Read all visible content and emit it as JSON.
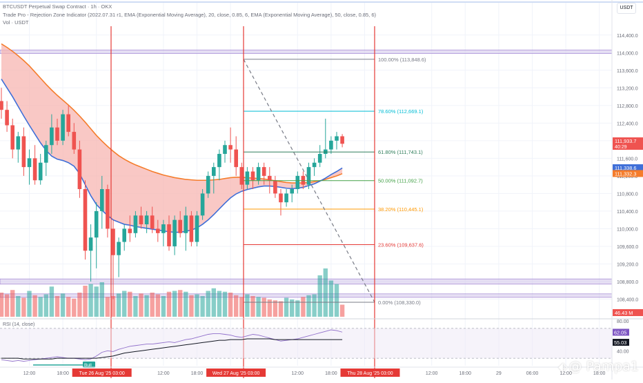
{
  "header": {
    "line1": "BTCUSDT Perpetual Swap Contract · 1h · OKX",
    "line2": "Trade Pro - Rejection Zone Indicator (2022.07.31 r1, EMA (Exponential Moving Average), 20, close, 0.85, 6, EMA (Exponential Moving Average), 50, close, 0.85, 6)",
    "line3": "Vol · USDT"
  },
  "currency": "USDT",
  "watermark": {
    "text": "@ Pampa1",
    "icon": "tradingview-logo-icon"
  },
  "colors": {
    "up": "#26a69a",
    "down": "#ef5350",
    "band": "#f7b6b2",
    "ema_fast": "#3f6fd8",
    "ema_slow": "#f57c2b",
    "vline": "#e53935",
    "rsi": "#7e57c2"
  },
  "chart_data": [
    {
      "type": "candlestick",
      "title": "",
      "ylim": [
        108000,
        114600
      ],
      "y_ticks": [
        "114,400.0",
        "114,000.0",
        "113,600.0",
        "113,200.0",
        "112,800.0",
        "112,400.0",
        "112,000.0",
        "111,600.0",
        "111,200.0",
        "110,800.0",
        "110,400.0",
        "110,000.0",
        "109,600.0",
        "109,200.0",
        "108,800.0",
        "108,400.0"
      ],
      "y_tick_values": [
        114400,
        114000,
        113600,
        113200,
        112800,
        112400,
        112000,
        111600,
        111200,
        110800,
        110400,
        110000,
        109600,
        109200,
        108800,
        108400
      ],
      "x_ticks": [
        {
          "i": 5,
          "label": "12:00"
        },
        {
          "i": 11,
          "label": "18:00"
        },
        {
          "i": 17,
          "label": "Tue 26 Aug '25   03:00",
          "highlight": true
        },
        {
          "i": 29,
          "label": "12:00"
        },
        {
          "i": 35,
          "label": "18:00"
        },
        {
          "i": 41,
          "label": "Wed 27 Aug '25   03:00",
          "highlight": true
        },
        {
          "i": 53,
          "label": "12:00"
        },
        {
          "i": 59,
          "label": "18:00"
        },
        {
          "i": 65,
          "label": "Thu 28 Aug '25   03:00",
          "highlight": true
        },
        {
          "i": 77,
          "label": "12:00"
        },
        {
          "i": 83,
          "label": "18:00"
        },
        {
          "i": 89,
          "label": "29"
        },
        {
          "i": 95,
          "label": "06:00"
        },
        {
          "i": 101,
          "label": "12:00"
        },
        {
          "i": 107,
          "label": "18:00"
        }
      ],
      "candles": [
        {
          "o": 112900,
          "h": 113200,
          "l": 112500,
          "c": 112700
        },
        {
          "o": 112700,
          "h": 112900,
          "l": 112200,
          "c": 112350
        },
        {
          "o": 112350,
          "h": 112500,
          "l": 111600,
          "c": 111800
        },
        {
          "o": 111800,
          "h": 112200,
          "l": 111500,
          "c": 112100
        },
        {
          "o": 112100,
          "h": 112300,
          "l": 111200,
          "c": 111400
        },
        {
          "o": 111400,
          "h": 111800,
          "l": 111000,
          "c": 111600
        },
        {
          "o": 111600,
          "h": 111900,
          "l": 111000,
          "c": 111100
        },
        {
          "o": 111100,
          "h": 111700,
          "l": 111000,
          "c": 111500
        },
        {
          "o": 111500,
          "h": 112000,
          "l": 111200,
          "c": 111900
        },
        {
          "o": 111900,
          "h": 112600,
          "l": 111700,
          "c": 112300
        },
        {
          "o": 112300,
          "h": 112500,
          "l": 111900,
          "c": 112000
        },
        {
          "o": 112000,
          "h": 112700,
          "l": 111900,
          "c": 112600
        },
        {
          "o": 112600,
          "h": 112800,
          "l": 112100,
          "c": 112200
        },
        {
          "o": 112200,
          "h": 112400,
          "l": 111700,
          "c": 111800
        },
        {
          "o": 111800,
          "h": 112000,
          "l": 110700,
          "c": 110900
        },
        {
          "o": 110900,
          "h": 111100,
          "l": 109300,
          "c": 109500
        },
        {
          "o": 109500,
          "h": 110100,
          "l": 108800,
          "c": 109800
        },
        {
          "o": 109800,
          "h": 110600,
          "l": 109100,
          "c": 110400
        },
        {
          "o": 110400,
          "h": 111200,
          "l": 110000,
          "c": 110900
        },
        {
          "o": 110900,
          "h": 111000,
          "l": 109800,
          "c": 110000
        },
        {
          "o": 110000,
          "h": 110200,
          "l": 108400,
          "c": 109400
        },
        {
          "o": 109400,
          "h": 109800,
          "l": 108900,
          "c": 109700
        },
        {
          "o": 109700,
          "h": 110100,
          "l": 109500,
          "c": 110000
        },
        {
          "o": 110000,
          "h": 110300,
          "l": 109700,
          "c": 109900
        },
        {
          "o": 109900,
          "h": 110400,
          "l": 109800,
          "c": 110300
        },
        {
          "o": 110300,
          "h": 110500,
          "l": 110000,
          "c": 110100
        },
        {
          "o": 110100,
          "h": 110400,
          "l": 109900,
          "c": 110300
        },
        {
          "o": 110300,
          "h": 110500,
          "l": 109900,
          "c": 110000
        },
        {
          "o": 110000,
          "h": 110200,
          "l": 109700,
          "c": 109900
        },
        {
          "o": 109900,
          "h": 110200,
          "l": 109600,
          "c": 110100
        },
        {
          "o": 110100,
          "h": 110300,
          "l": 109500,
          "c": 109600
        },
        {
          "o": 109600,
          "h": 110300,
          "l": 109400,
          "c": 110200
        },
        {
          "o": 110200,
          "h": 110400,
          "l": 109800,
          "c": 109900
        },
        {
          "o": 109900,
          "h": 110500,
          "l": 109500,
          "c": 110300
        },
        {
          "o": 110300,
          "h": 110400,
          "l": 109600,
          "c": 109700
        },
        {
          "o": 109700,
          "h": 110400,
          "l": 109600,
          "c": 110300
        },
        {
          "o": 110300,
          "h": 110900,
          "l": 110200,
          "c": 110800
        },
        {
          "o": 110800,
          "h": 111300,
          "l": 110700,
          "c": 111200
        },
        {
          "o": 111200,
          "h": 111500,
          "l": 110800,
          "c": 111400
        },
        {
          "o": 111400,
          "h": 111800,
          "l": 111100,
          "c": 111700
        },
        {
          "o": 111700,
          "h": 112000,
          "l": 111500,
          "c": 111900
        },
        {
          "o": 111900,
          "h": 112300,
          "l": 111500,
          "c": 111800
        },
        {
          "o": 111800,
          "h": 112100,
          "l": 111200,
          "c": 111400
        },
        {
          "o": 111400,
          "h": 111500,
          "l": 110900,
          "c": 111000
        },
        {
          "o": 111000,
          "h": 111400,
          "l": 110900,
          "c": 111300
        },
        {
          "o": 111300,
          "h": 111400,
          "l": 110900,
          "c": 111100
        },
        {
          "o": 111100,
          "h": 111500,
          "l": 111000,
          "c": 111400
        },
        {
          "o": 111400,
          "h": 111500,
          "l": 111000,
          "c": 111200
        },
        {
          "o": 111200,
          "h": 111400,
          "l": 110800,
          "c": 111100
        },
        {
          "o": 111100,
          "h": 111200,
          "l": 110700,
          "c": 110800
        },
        {
          "o": 110800,
          "h": 110900,
          "l": 110300,
          "c": 110600
        },
        {
          "o": 110600,
          "h": 110900,
          "l": 110500,
          "c": 110800
        },
        {
          "o": 110800,
          "h": 111000,
          "l": 110600,
          "c": 110900
        },
        {
          "o": 110900,
          "h": 111300,
          "l": 110800,
          "c": 111200
        },
        {
          "o": 111200,
          "h": 111300,
          "l": 110900,
          "c": 111000
        },
        {
          "o": 111000,
          "h": 111500,
          "l": 110900,
          "c": 111400
        },
        {
          "o": 111400,
          "h": 111600,
          "l": 111200,
          "c": 111500
        },
        {
          "o": 111500,
          "h": 111900,
          "l": 111400,
          "c": 111700
        },
        {
          "o": 111700,
          "h": 112500,
          "l": 111600,
          "c": 111800
        },
        {
          "o": 111800,
          "h": 112100,
          "l": 111700,
          "c": 112000
        },
        {
          "o": 112000,
          "h": 112200,
          "l": 111800,
          "c": 112100
        },
        {
          "o": 112100,
          "h": 112150,
          "l": 111850,
          "c": 111930
        }
      ],
      "volume": [
        140,
        130,
        155,
        120,
        110,
        150,
        125,
        115,
        130,
        175,
        120,
        135,
        115,
        105,
        140,
        180,
        190,
        175,
        200,
        115,
        120,
        135,
        150,
        145,
        120,
        135,
        125,
        140,
        130,
        120,
        145,
        150,
        155,
        145,
        125,
        130,
        120,
        150,
        165,
        150,
        145,
        140,
        125,
        115,
        130,
        120,
        115,
        110,
        100,
        95,
        90,
        110,
        100,
        95,
        115,
        125,
        130,
        240,
        280,
        210,
        190,
        70
      ],
      "fast_ema": [
        113400,
        113200,
        113000,
        112780,
        112560,
        112350,
        112150,
        111950,
        111780,
        111650,
        111580,
        111550,
        111500,
        111420,
        111250,
        111000,
        110750,
        110550,
        110420,
        110300,
        110200,
        110150,
        110100,
        110080,
        110050,
        110030,
        110010,
        109990,
        109970,
        109950,
        109930,
        109920,
        109920,
        109940,
        109970,
        110020,
        110100,
        110200,
        110320,
        110450,
        110580,
        110700,
        110790,
        110850,
        110890,
        110920,
        110950,
        110970,
        110970,
        110960,
        110940,
        110920,
        110910,
        110920,
        110940,
        110980,
        111020,
        111080,
        111150,
        111230,
        111300,
        111380
      ],
      "slow_ema": [
        114200,
        114120,
        114030,
        113930,
        113820,
        113700,
        113560,
        113420,
        113280,
        113150,
        113030,
        112920,
        112810,
        112690,
        112560,
        112420,
        112270,
        112120,
        111990,
        111870,
        111760,
        111660,
        111580,
        111510,
        111450,
        111400,
        111350,
        111300,
        111260,
        111220,
        111190,
        111160,
        111140,
        111120,
        111110,
        111100,
        111100,
        111100,
        111110,
        111120,
        111140,
        111160,
        111170,
        111170,
        111160,
        111150,
        111140,
        111130,
        111110,
        111090,
        111070,
        111050,
        111040,
        111040,
        111040,
        111050,
        111070,
        111090,
        111120,
        111160,
        111200,
        111250
      ],
      "fib_levels": [
        {
          "ratio": "100.00%",
          "price": 113848.6,
          "label": "100.00% (113,848.6)",
          "color": "#787b86"
        },
        {
          "ratio": "78.60%",
          "price": 112669.1,
          "label": "78.60% (112,669.1)",
          "color": "#00bcd4"
        },
        {
          "ratio": "61.80%",
          "price": 111743.1,
          "label": "61.80% (111,743.1)",
          "color": "#2e7d5b"
        },
        {
          "ratio": "50.00%",
          "price": 111092.7,
          "label": "50.00% (111,092.7)",
          "color": "#43a047"
        },
        {
          "ratio": "38.20%",
          "price": 110445.1,
          "label": "38.20% (110,445.1)",
          "color": "#ff9800"
        },
        {
          "ratio": "23.60%",
          "price": 109637.6,
          "label": "23.60% (109,637.6)",
          "color": "#e53935"
        },
        {
          "ratio": "0.00%",
          "price": 108330.0,
          "label": "0.00% (108,330.0)",
          "color": "#787b86"
        }
      ],
      "zones": [
        [
          113980,
          114060
        ],
        [
          108740,
          108860
        ],
        [
          108440,
          108520
        ]
      ],
      "price_labels": [
        {
          "value": 111933.7,
          "text": "111,933.7",
          "sub": "40:29",
          "color": "#ef5350"
        },
        {
          "value": 111338.6,
          "text": "111,338.6",
          "color": "#3f6fd8"
        },
        {
          "value": 111332.3,
          "text": "111,332.3",
          "color": "#f57c2b"
        }
      ],
      "volume_label": {
        "text": "46.43 M",
        "color": "#ef5350"
      }
    },
    {
      "type": "line",
      "title": "RSI (14, close)",
      "ylim": [
        20,
        80
      ],
      "y_ticks": [
        "80.00",
        "40.00"
      ],
      "y_tick_values": [
        80,
        40
      ],
      "bands": [
        70,
        30
      ],
      "rsi": [
        28,
        27,
        26,
        27,
        26,
        27,
        28,
        29,
        30,
        31,
        32,
        31,
        30,
        30,
        29,
        28,
        29,
        33,
        38,
        40,
        39,
        42,
        44,
        46,
        47,
        48,
        49,
        49,
        50,
        51,
        52,
        51,
        53,
        55,
        56,
        58,
        60,
        62,
        63,
        63,
        62,
        61,
        59,
        58,
        60,
        62,
        61,
        59,
        57,
        55,
        53,
        54,
        55,
        56,
        58,
        60,
        62,
        64,
        66,
        68,
        67,
        65
      ],
      "rsi_ma": [
        30,
        30,
        30,
        30,
        29,
        29,
        29,
        29,
        29,
        29,
        30,
        30,
        30,
        30,
        30,
        30,
        30,
        30,
        31,
        32,
        33,
        35,
        37,
        38,
        39,
        40,
        41,
        42,
        43,
        44,
        45,
        46,
        47,
        48,
        49,
        50,
        51,
        52,
        53,
        54,
        54,
        55,
        55,
        55,
        56,
        56,
        56,
        56,
        56,
        55,
        55,
        55,
        55,
        55,
        55,
        55,
        55,
        55,
        55,
        55,
        55,
        55
      ],
      "value_labels": [
        {
          "value": 62.05,
          "text": "62.05",
          "color": "#7e57c2"
        },
        {
          "value": 55.03,
          "text": "55.03",
          "color": "#131722"
        }
      ],
      "annotation": {
        "text": "Bull",
        "color": "#26a69a"
      }
    }
  ]
}
